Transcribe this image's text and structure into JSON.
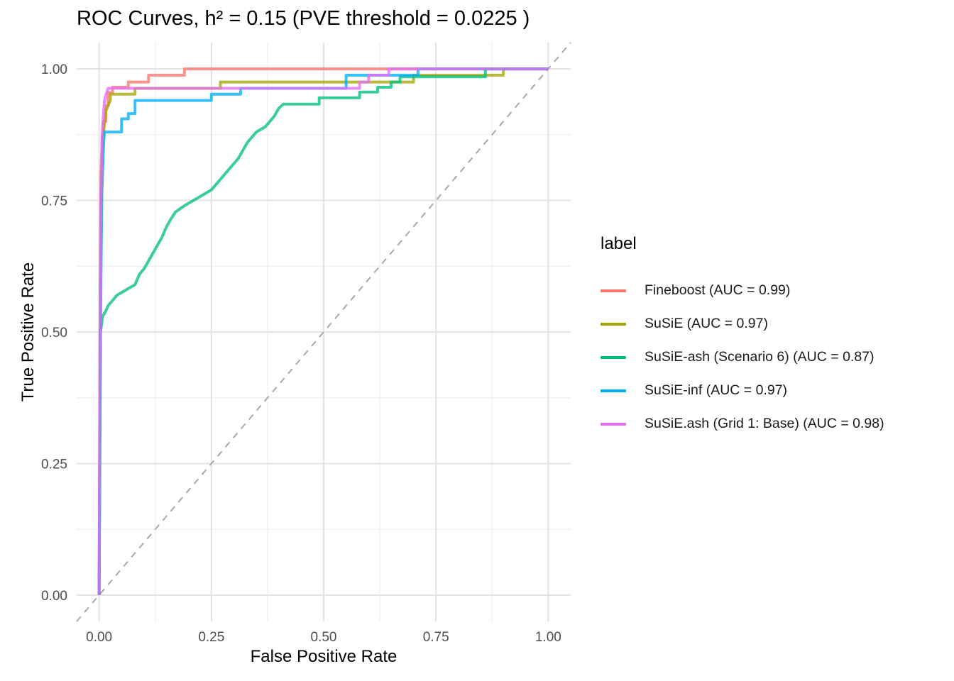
{
  "chart_data": {
    "type": "line",
    "title": "ROC Curves, h² = 0.15 (PVE threshold = 0.0225 )",
    "xlabel": "False Positive Rate",
    "ylabel": "True Positive Rate",
    "xlim": [
      -0.05,
      1.05
    ],
    "ylim": [
      -0.05,
      1.05
    ],
    "xticks": [
      "0.00",
      "0.25",
      "0.50",
      "0.75",
      "1.00"
    ],
    "yticks": [
      "0.00",
      "0.25",
      "0.50",
      "0.75",
      "1.00"
    ],
    "grid": true,
    "diagonal_reference": true,
    "legend_title": "label",
    "legend_position": "right",
    "series": [
      {
        "name": "Fineboost (AUC = 0.99)",
        "color": "#F8766D",
        "points": [
          [
            0,
            0
          ],
          [
            0.002,
            0.5
          ],
          [
            0.004,
            0.8
          ],
          [
            0.007,
            0.87
          ],
          [
            0.01,
            0.88
          ],
          [
            0.01,
            0.9
          ],
          [
            0.015,
            0.9
          ],
          [
            0.015,
            0.93
          ],
          [
            0.02,
            0.93
          ],
          [
            0.02,
            0.955
          ],
          [
            0.03,
            0.955
          ],
          [
            0.03,
            0.965
          ],
          [
            0.065,
            0.965
          ],
          [
            0.065,
            0.975
          ],
          [
            0.11,
            0.975
          ],
          [
            0.11,
            0.988
          ],
          [
            0.19,
            0.988
          ],
          [
            0.19,
            1.0
          ],
          [
            1.0,
            1.0
          ]
        ]
      },
      {
        "name": "SuSiE (AUC = 0.97)",
        "color": "#A3A500",
        "points": [
          [
            0,
            0
          ],
          [
            0.003,
            0.6
          ],
          [
            0.006,
            0.8
          ],
          [
            0.01,
            0.88
          ],
          [
            0.015,
            0.92
          ],
          [
            0.025,
            0.94
          ],
          [
            0.025,
            0.952
          ],
          [
            0.08,
            0.952
          ],
          [
            0.08,
            0.963
          ],
          [
            0.27,
            0.963
          ],
          [
            0.27,
            0.975
          ],
          [
            0.7,
            0.975
          ],
          [
            0.7,
            0.988
          ],
          [
            0.9,
            0.988
          ],
          [
            0.9,
            1.0
          ],
          [
            1.0,
            1.0
          ]
        ]
      },
      {
        "name": "SuSiE-ash (Scenario 6) (AUC = 0.87)",
        "color": "#00BF7D",
        "points": [
          [
            0,
            0
          ],
          [
            0.003,
            0.5
          ],
          [
            0.008,
            0.53
          ],
          [
            0.015,
            0.54
          ],
          [
            0.02,
            0.55
          ],
          [
            0.03,
            0.56
          ],
          [
            0.04,
            0.57
          ],
          [
            0.05,
            0.575
          ],
          [
            0.06,
            0.58
          ],
          [
            0.07,
            0.585
          ],
          [
            0.08,
            0.59
          ],
          [
            0.085,
            0.6
          ],
          [
            0.09,
            0.61
          ],
          [
            0.1,
            0.62
          ],
          [
            0.11,
            0.635
          ],
          [
            0.12,
            0.65
          ],
          [
            0.13,
            0.665
          ],
          [
            0.14,
            0.68
          ],
          [
            0.15,
            0.7
          ],
          [
            0.16,
            0.715
          ],
          [
            0.17,
            0.728
          ],
          [
            0.19,
            0.74
          ],
          [
            0.21,
            0.75
          ],
          [
            0.23,
            0.76
          ],
          [
            0.25,
            0.77
          ],
          [
            0.26,
            0.78
          ],
          [
            0.27,
            0.79
          ],
          [
            0.28,
            0.8
          ],
          [
            0.29,
            0.81
          ],
          [
            0.3,
            0.82
          ],
          [
            0.31,
            0.83
          ],
          [
            0.32,
            0.845
          ],
          [
            0.33,
            0.86
          ],
          [
            0.34,
            0.87
          ],
          [
            0.35,
            0.88
          ],
          [
            0.37,
            0.89
          ],
          [
            0.38,
            0.9
          ],
          [
            0.39,
            0.91
          ],
          [
            0.4,
            0.925
          ],
          [
            0.41,
            0.933
          ],
          [
            0.49,
            0.933
          ],
          [
            0.49,
            0.945
          ],
          [
            0.58,
            0.945
          ],
          [
            0.58,
            0.956
          ],
          [
            0.62,
            0.956
          ],
          [
            0.62,
            0.965
          ],
          [
            0.65,
            0.965
          ],
          [
            0.65,
            0.975
          ],
          [
            0.67,
            0.975
          ],
          [
            0.67,
            0.985
          ],
          [
            0.86,
            0.985
          ],
          [
            0.86,
            1.0
          ],
          [
            1.0,
            1.0
          ]
        ]
      },
      {
        "name": "SuSiE-inf (AUC = 0.97)",
        "color": "#00B0F6",
        "points": [
          [
            0,
            0
          ],
          [
            0.003,
            0.5
          ],
          [
            0.006,
            0.76
          ],
          [
            0.01,
            0.86
          ],
          [
            0.012,
            0.88
          ],
          [
            0.05,
            0.88
          ],
          [
            0.05,
            0.905
          ],
          [
            0.065,
            0.905
          ],
          [
            0.065,
            0.915
          ],
          [
            0.08,
            0.915
          ],
          [
            0.08,
            0.94
          ],
          [
            0.25,
            0.94
          ],
          [
            0.25,
            0.952
          ],
          [
            0.315,
            0.952
          ],
          [
            0.315,
            0.963
          ],
          [
            0.55,
            0.963
          ],
          [
            0.55,
            0.988
          ],
          [
            0.71,
            0.988
          ],
          [
            0.71,
            1.0
          ],
          [
            1.0,
            1.0
          ]
        ]
      },
      {
        "name": "SuSiE.ash (Grid 1: Base) (AUC = 0.98)",
        "color": "#E76BF3",
        "points": [
          [
            0,
            0
          ],
          [
            0.002,
            0.5
          ],
          [
            0.004,
            0.75
          ],
          [
            0.007,
            0.88
          ],
          [
            0.01,
            0.92
          ],
          [
            0.012,
            0.94
          ],
          [
            0.015,
            0.95
          ],
          [
            0.02,
            0.963
          ],
          [
            0.58,
            0.963
          ],
          [
            0.58,
            0.975
          ],
          [
            0.6,
            0.975
          ],
          [
            0.6,
            0.988
          ],
          [
            0.645,
            0.988
          ],
          [
            0.645,
            1.0
          ],
          [
            1.0,
            1.0
          ]
        ]
      }
    ]
  }
}
